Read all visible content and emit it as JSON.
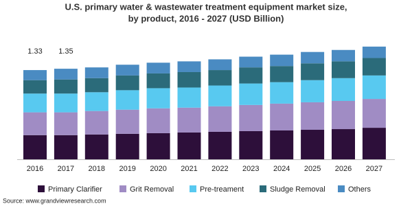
{
  "chart_data": {
    "type": "stacked_bar",
    "title": [
      "U.S. primary water & wastewater treatment equipment market size,",
      "by product, 2016 - 2027 (USD Billion)"
    ],
    "categories": [
      "2016",
      "2017",
      "2018",
      "2019",
      "2020",
      "2021",
      "2022",
      "2023",
      "2024",
      "2025",
      "2026",
      "2027"
    ],
    "series": [
      {
        "name": "Primary Clarifier",
        "color": "#2d0f3a",
        "values": [
          0.36,
          0.36,
          0.37,
          0.38,
          0.39,
          0.4,
          0.41,
          0.42,
          0.43,
          0.44,
          0.45,
          0.47
        ]
      },
      {
        "name": "Grit Removal",
        "color": "#a08cc4",
        "values": [
          0.34,
          0.34,
          0.35,
          0.36,
          0.37,
          0.37,
          0.38,
          0.39,
          0.4,
          0.41,
          0.42,
          0.43
        ]
      },
      {
        "name": "Pre-treament",
        "color": "#58c9f0",
        "values": [
          0.28,
          0.28,
          0.28,
          0.29,
          0.3,
          0.3,
          0.31,
          0.32,
          0.32,
          0.33,
          0.34,
          0.35
        ]
      },
      {
        "name": "Sludge Removal",
        "color": "#2b6b7a",
        "values": [
          0.2,
          0.21,
          0.21,
          0.22,
          0.22,
          0.23,
          0.23,
          0.24,
          0.24,
          0.25,
          0.25,
          0.26
        ]
      },
      {
        "name": "Others",
        "color": "#4a8bc2",
        "values": [
          0.15,
          0.16,
          0.16,
          0.16,
          0.16,
          0.16,
          0.16,
          0.16,
          0.17,
          0.17,
          0.17,
          0.17
        ]
      }
    ],
    "annotations": [
      {
        "category": "2016",
        "value": 1.33
      },
      {
        "category": "2017",
        "value": 1.35
      }
    ],
    "source": "Source: www.grandviewresearch.com"
  }
}
